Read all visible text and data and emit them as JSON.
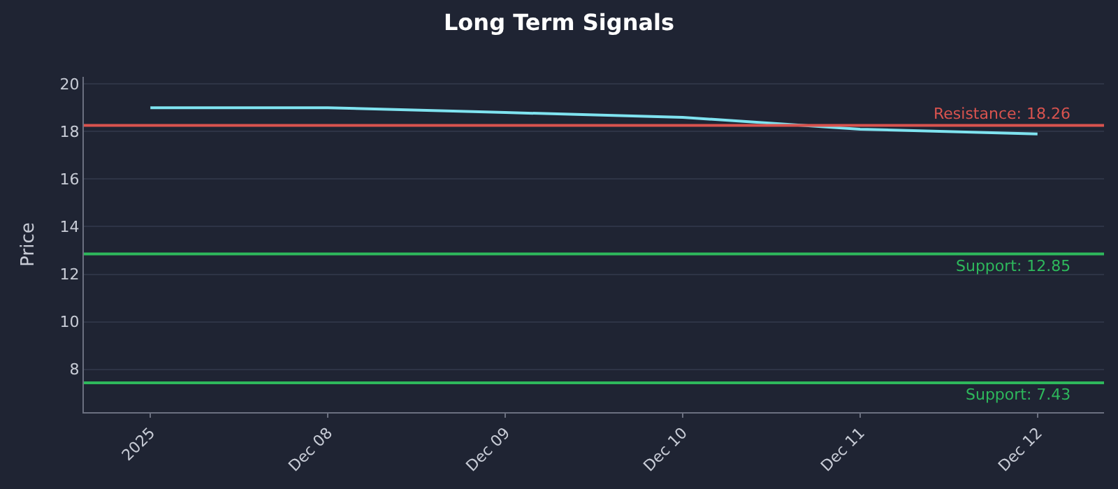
{
  "chart_data": {
    "type": "line",
    "title": "Long Term Signals",
    "ylabel": "Price",
    "x": [
      "2025-12-07",
      "2025-12-08",
      "2025-12-09",
      "2025-12-10",
      "2025-12-11",
      "2025-12-12"
    ],
    "series": [
      {
        "color": "#7fe3f0",
        "values": [
          19.0,
          19.0,
          18.8,
          18.6,
          18.1,
          17.9
        ]
      }
    ],
    "xlim": [
      "2025-12-06T15:00",
      "2025-12-12T09:00"
    ],
    "xticks": [
      {
        "value": "2025-12-07",
        "label": "2025"
      },
      {
        "value": "2025-12-08",
        "label": "Dec 08"
      },
      {
        "value": "2025-12-09",
        "label": "Dec 09"
      },
      {
        "value": "2025-12-10",
        "label": "Dec 10"
      },
      {
        "value": "2025-12-11",
        "label": "Dec 11"
      },
      {
        "value": "2025-12-12",
        "label": "Dec 12"
      }
    ],
    "ylim": [
      6.2,
      20.3
    ],
    "yticks": [
      8,
      10,
      12,
      14,
      16,
      18,
      20
    ],
    "ref_lines": [
      {
        "axis": "y",
        "value": 18.26,
        "label": "Resistance: 18.26",
        "color": "#d9534f"
      },
      {
        "axis": "y",
        "value": 12.85,
        "label": "Support: 12.85",
        "color": "#2eb85c"
      },
      {
        "axis": "y",
        "value": 7.43,
        "label": "Support: 7.43",
        "color": "#2eb85c"
      }
    ],
    "grid": "y",
    "marker": "none",
    "line_style": "solid"
  }
}
